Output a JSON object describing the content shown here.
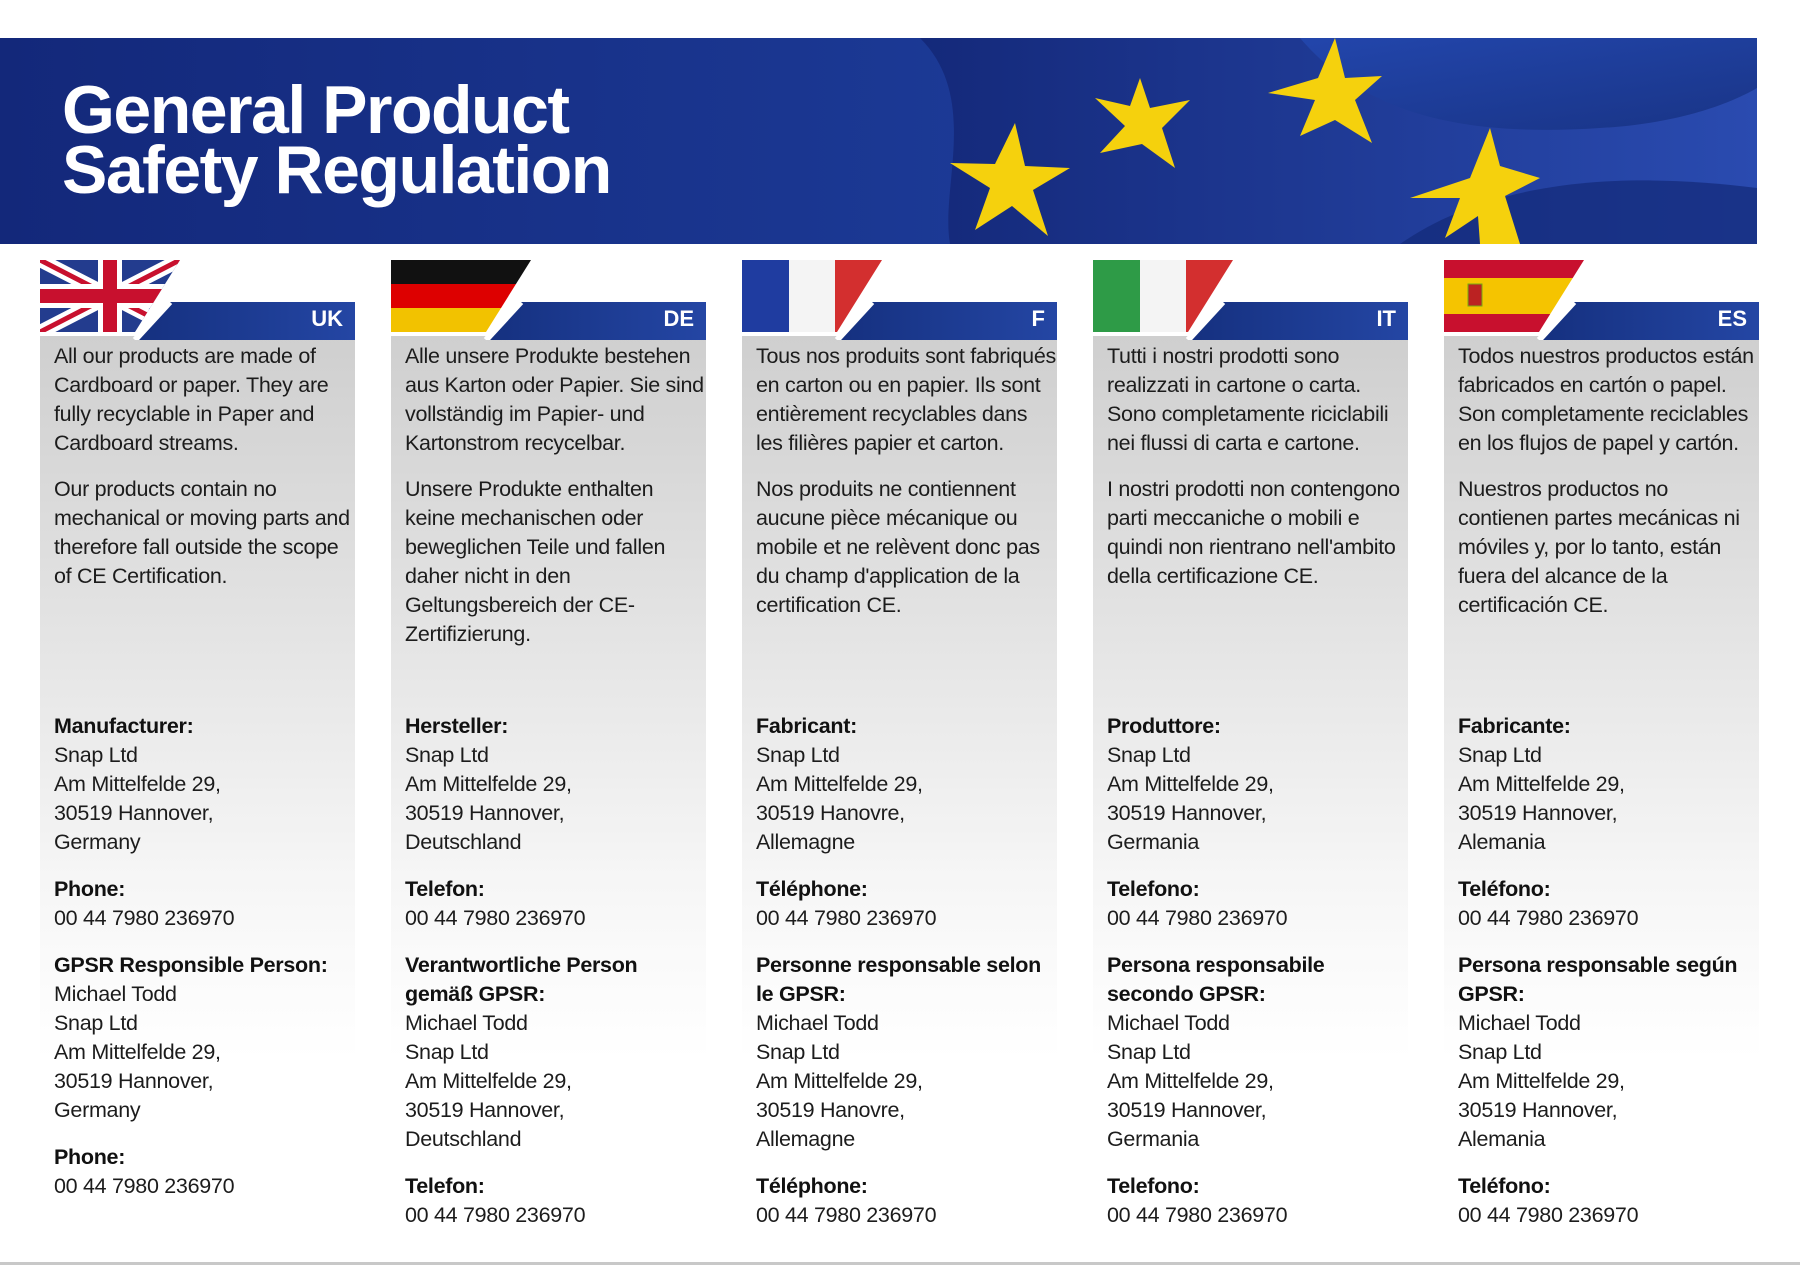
{
  "banner": {
    "title_line1": "General Product",
    "title_line2": "Safety Regulation"
  },
  "columns": [
    {
      "code": "UK",
      "flag": "uk-flag",
      "para1": "All our products are made of Cardboard or paper. They are fully recyclable in Paper and Cardboard streams.",
      "para2": "Our products contain no mechanical or moving parts and therefore fall outside the scope of CE Certification.",
      "manufacturer_label": "Manufacturer:",
      "manufacturer_lines": [
        "Snap Ltd",
        "Am Mittelfelde 29,",
        "30519 Hannover,",
        "Germany"
      ],
      "phone_label": "Phone:",
      "phone": "00 44 7980 236970",
      "gpsr_label": "GPSR Responsible Person:",
      "gpsr_lines": [
        "Michael Todd",
        "Snap Ltd",
        "Am Mittelfelde 29,",
        "30519 Hannover,",
        "Germany"
      ],
      "phone2_label": "Phone:",
      "phone2": "00 44 7980 236970"
    },
    {
      "code": "DE",
      "flag": "germany-flag",
      "para1": "Alle unsere Produkte bestehen aus Karton oder Papier. Sie sind vollständig im Papier- und Kartonstrom recycelbar.",
      "para2": "Unsere Produkte enthalten keine mechanischen oder beweglichen Teile und fallen daher nicht in den Geltungsbereich der CE-Zertifizierung.",
      "manufacturer_label": "Hersteller:",
      "manufacturer_lines": [
        "Snap Ltd",
        "Am Mittelfelde 29,",
        "30519 Hannover,",
        "Deutschland"
      ],
      "phone_label": "Telefon:",
      "phone": "00 44 7980 236970",
      "gpsr_label": "Verantwortliche Person gemäß GPSR:",
      "gpsr_lines": [
        "Michael Todd",
        "Snap Ltd",
        "Am Mittelfelde 29,",
        "30519 Hannover,",
        "Deutschland"
      ],
      "phone2_label": "Telefon:",
      "phone2": "00 44 7980 236970"
    },
    {
      "code": "F",
      "flag": "france-flag",
      "para1": "Tous nos produits sont fabriqués en carton ou en papier. Ils sont entièrement recyclables dans les filières papier et carton.",
      "para2": "Nos produits ne contiennent aucune pièce mécanique ou mobile et ne relèvent donc pas du champ d'application de la certification CE.",
      "manufacturer_label": "Fabricant:",
      "manufacturer_lines": [
        "Snap Ltd",
        "Am Mittelfelde 29,",
        "30519 Hanovre,",
        "Allemagne"
      ],
      "phone_label": "Téléphone:",
      "phone": "00 44 7980 236970",
      "gpsr_label": "Personne responsable selon le GPSR:",
      "gpsr_lines": [
        "Michael Todd",
        "Snap Ltd",
        "Am Mittelfelde 29,",
        "30519 Hanovre,",
        "Allemagne"
      ],
      "phone2_label": "Téléphone:",
      "phone2": "00 44 7980 236970"
    },
    {
      "code": "IT",
      "flag": "italy-flag",
      "para1": "Tutti i nostri prodotti sono realizzati in cartone o carta. Sono completamente riciclabili nei flussi di carta e cartone.",
      "para2": "I nostri prodotti non contengono parti meccaniche o mobili e quindi non rientrano nell'ambito della certificazione CE.",
      "manufacturer_label": "Produttore:",
      "manufacturer_lines": [
        "Snap Ltd",
        "Am Mittelfelde 29,",
        "30519 Hannover,",
        "Germania"
      ],
      "phone_label": "Telefono:",
      "phone": "00 44 7980 236970",
      "gpsr_label": "Persona responsabile secondo GPSR:",
      "gpsr_lines": [
        "Michael Todd",
        "Snap Ltd",
        "Am Mittelfelde 29,",
        "30519 Hannover,",
        "Germania"
      ],
      "phone2_label": "Telefono:",
      "phone2": "00 44 7980 236970"
    },
    {
      "code": "ES",
      "flag": "spain-flag",
      "para1": "Todos nuestros productos están fabricados en cartón o papel. Son completamente reciclables en los flujos de papel y cartón.",
      "para2": "Nuestros productos no contienen partes mecánicas ni móviles y, por lo tanto, están fuera del alcance de la certificación CE.",
      "manufacturer_label": "Fabricante:",
      "manufacturer_lines": [
        "Snap Ltd",
        "Am Mittelfelde 29,",
        "30519 Hannover,",
        "Alemania"
      ],
      "phone_label": "Teléfono:",
      "phone": "00 44 7980 236970",
      "gpsr_label": "Persona responsable según GPSR:",
      "gpsr_lines": [
        "Michael Todd",
        "Snap Ltd",
        "Am Mittelfelde 29,",
        "30519 Hannover,",
        "Alemania"
      ],
      "phone2_label": "Teléfono:",
      "phone2": "00 44 7980 236970"
    }
  ],
  "colors": {
    "banner_blue": "#1a3690",
    "tab_blue": "#1f3f98",
    "eu_yellow": "#f5d10d"
  }
}
